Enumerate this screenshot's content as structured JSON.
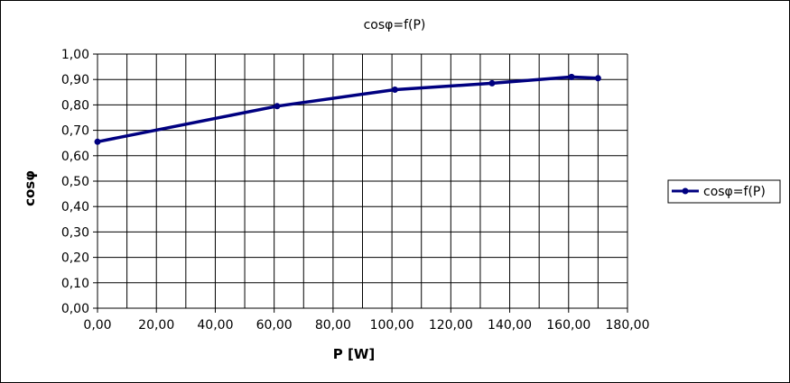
{
  "chart_data": {
    "type": "line",
    "title": "cosφ=f(P)",
    "xlabel": "P [W]",
    "ylabel": "cosφ",
    "xlim": [
      0,
      180
    ],
    "ylim": [
      0,
      1
    ],
    "x_ticks": [
      "0,00",
      "20,00",
      "40,00",
      "60,00",
      "80,00",
      "100,00",
      "120,00",
      "140,00",
      "160,00",
      "180,00"
    ],
    "y_ticks": [
      "0,00",
      "0,10",
      "0,20",
      "0,30",
      "0,40",
      "0,50",
      "0,60",
      "0,70",
      "0,80",
      "0,90",
      "1,00"
    ],
    "grid": true,
    "legend": "right",
    "series": [
      {
        "name": "cosφ=f(P)",
        "color": "#000080",
        "x": [
          0,
          61,
          101,
          134,
          161,
          170
        ],
        "y": [
          0.655,
          0.795,
          0.86,
          0.885,
          0.91,
          0.905
        ]
      }
    ]
  }
}
